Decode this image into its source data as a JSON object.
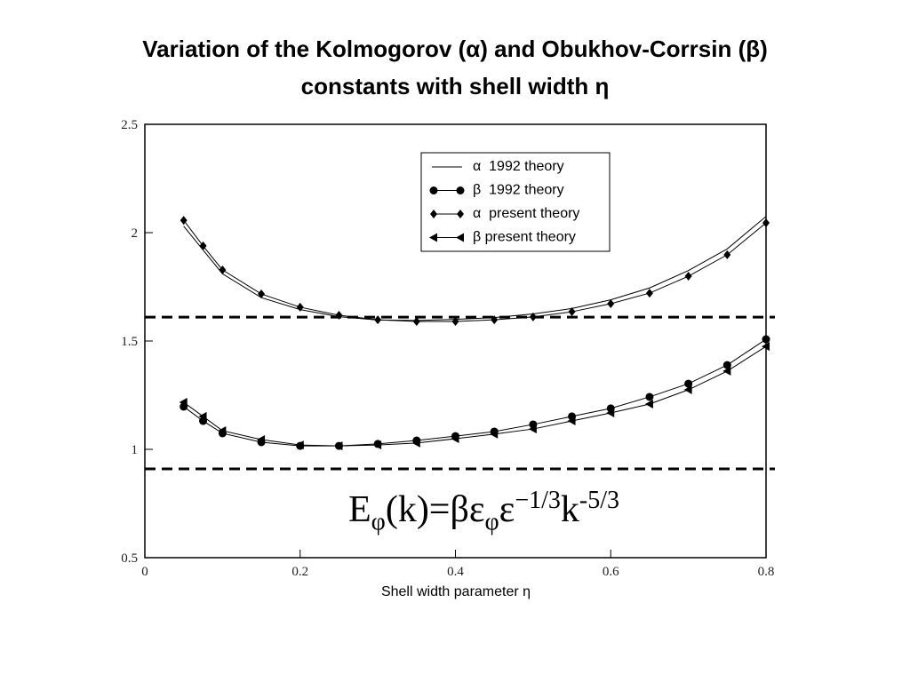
{
  "chart_data": {
    "type": "line",
    "title": "Variation of the Kolmogorov (α) and Obukhov-Corrsin (β) constants with shell width η",
    "xlabel": "Shell width parameter η",
    "x": [
      0.05,
      0.075,
      0.1,
      0.15,
      0.2,
      0.25,
      0.3,
      0.35,
      0.4,
      0.45,
      0.5,
      0.55,
      0.6,
      0.65,
      0.7,
      0.75,
      0.8
    ],
    "series": [
      {
        "name": "α  1992 theory",
        "color": "#000000",
        "marker": "none",
        "values": [
          2.03,
          1.92,
          1.81,
          1.7,
          1.645,
          1.612,
          1.597,
          1.595,
          1.6,
          1.608,
          1.625,
          1.65,
          1.69,
          1.745,
          1.825,
          1.925,
          2.075
        ]
      },
      {
        "name": "β  1992 theory",
        "color": "#000000",
        "marker": "circle",
        "values": [
          1.197,
          1.131,
          1.074,
          1.033,
          1.016,
          1.016,
          1.025,
          1.041,
          1.061,
          1.082,
          1.115,
          1.152,
          1.189,
          1.242,
          1.303,
          1.389,
          1.508
        ]
      },
      {
        "name": "α  present theory",
        "color": "#000000",
        "marker": "diamond",
        "values": [
          2.057,
          1.939,
          1.828,
          1.717,
          1.656,
          1.619,
          1.598,
          1.59,
          1.59,
          1.598,
          1.611,
          1.635,
          1.672,
          1.721,
          1.799,
          1.898,
          2.045
        ]
      },
      {
        "name": "β present theory",
        "color": "#000000",
        "marker": "triangle-left",
        "values": [
          1.217,
          1.152,
          1.086,
          1.045,
          1.02,
          1.016,
          1.02,
          1.029,
          1.049,
          1.07,
          1.094,
          1.131,
          1.168,
          1.209,
          1.275,
          1.361,
          1.475
        ]
      }
    ],
    "hlines": [
      1.61,
      0.91
    ],
    "xlim": [
      0,
      0.8
    ],
    "xticks": [
      0,
      0.2,
      0.4,
      0.6,
      0.8
    ],
    "ylim": [
      0.5,
      2.5
    ],
    "yticks": [
      0.5,
      1,
      1.5,
      2,
      2.5
    ],
    "legend": "upper-right",
    "formula": [
      {
        "text": "E"
      },
      {
        "sub": "φ"
      },
      {
        "text": "(k)=βε"
      },
      {
        "sub": "φ"
      },
      {
        "text": "ε"
      },
      {
        "sup": "−1/3"
      },
      {
        "text": "k"
      },
      {
        "sup": "-5/3"
      }
    ]
  }
}
